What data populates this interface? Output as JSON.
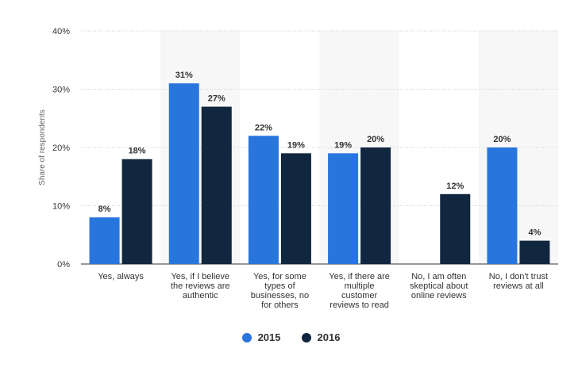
{
  "chart_data": {
    "type": "bar",
    "title": "",
    "xlabel": "",
    "ylabel": "Share of respondents",
    "ylim": [
      0,
      40
    ],
    "yticks": [
      "0%",
      "10%",
      "20%",
      "30%",
      "40%"
    ],
    "grid": true,
    "legend_position": "bottom-center",
    "categories": [
      [
        "Yes, always"
      ],
      [
        "Yes, if I believe",
        "the reviews are",
        "authentic"
      ],
      [
        "Yes, for some",
        "types of",
        "businesses, no",
        "for others"
      ],
      [
        "Yes, if there are",
        "multiple",
        "customer",
        "reviews to read"
      ],
      [
        "No, I am often",
        "skeptical about",
        "online reviews"
      ],
      [
        "No, I don't trust",
        "reviews at all"
      ]
    ],
    "series": [
      {
        "name": "2015",
        "color": "#2876dd",
        "values": [
          8,
          31,
          22,
          19,
          null,
          20
        ],
        "labels": [
          "8%",
          "31%",
          "22%",
          "19%",
          "",
          "20%"
        ]
      },
      {
        "name": "2016",
        "color": "#11263f",
        "values": [
          18,
          27,
          19,
          20,
          12,
          4
        ],
        "labels": [
          "18%",
          "27%",
          "19%",
          "20%",
          "12%",
          "4%"
        ]
      }
    ]
  }
}
